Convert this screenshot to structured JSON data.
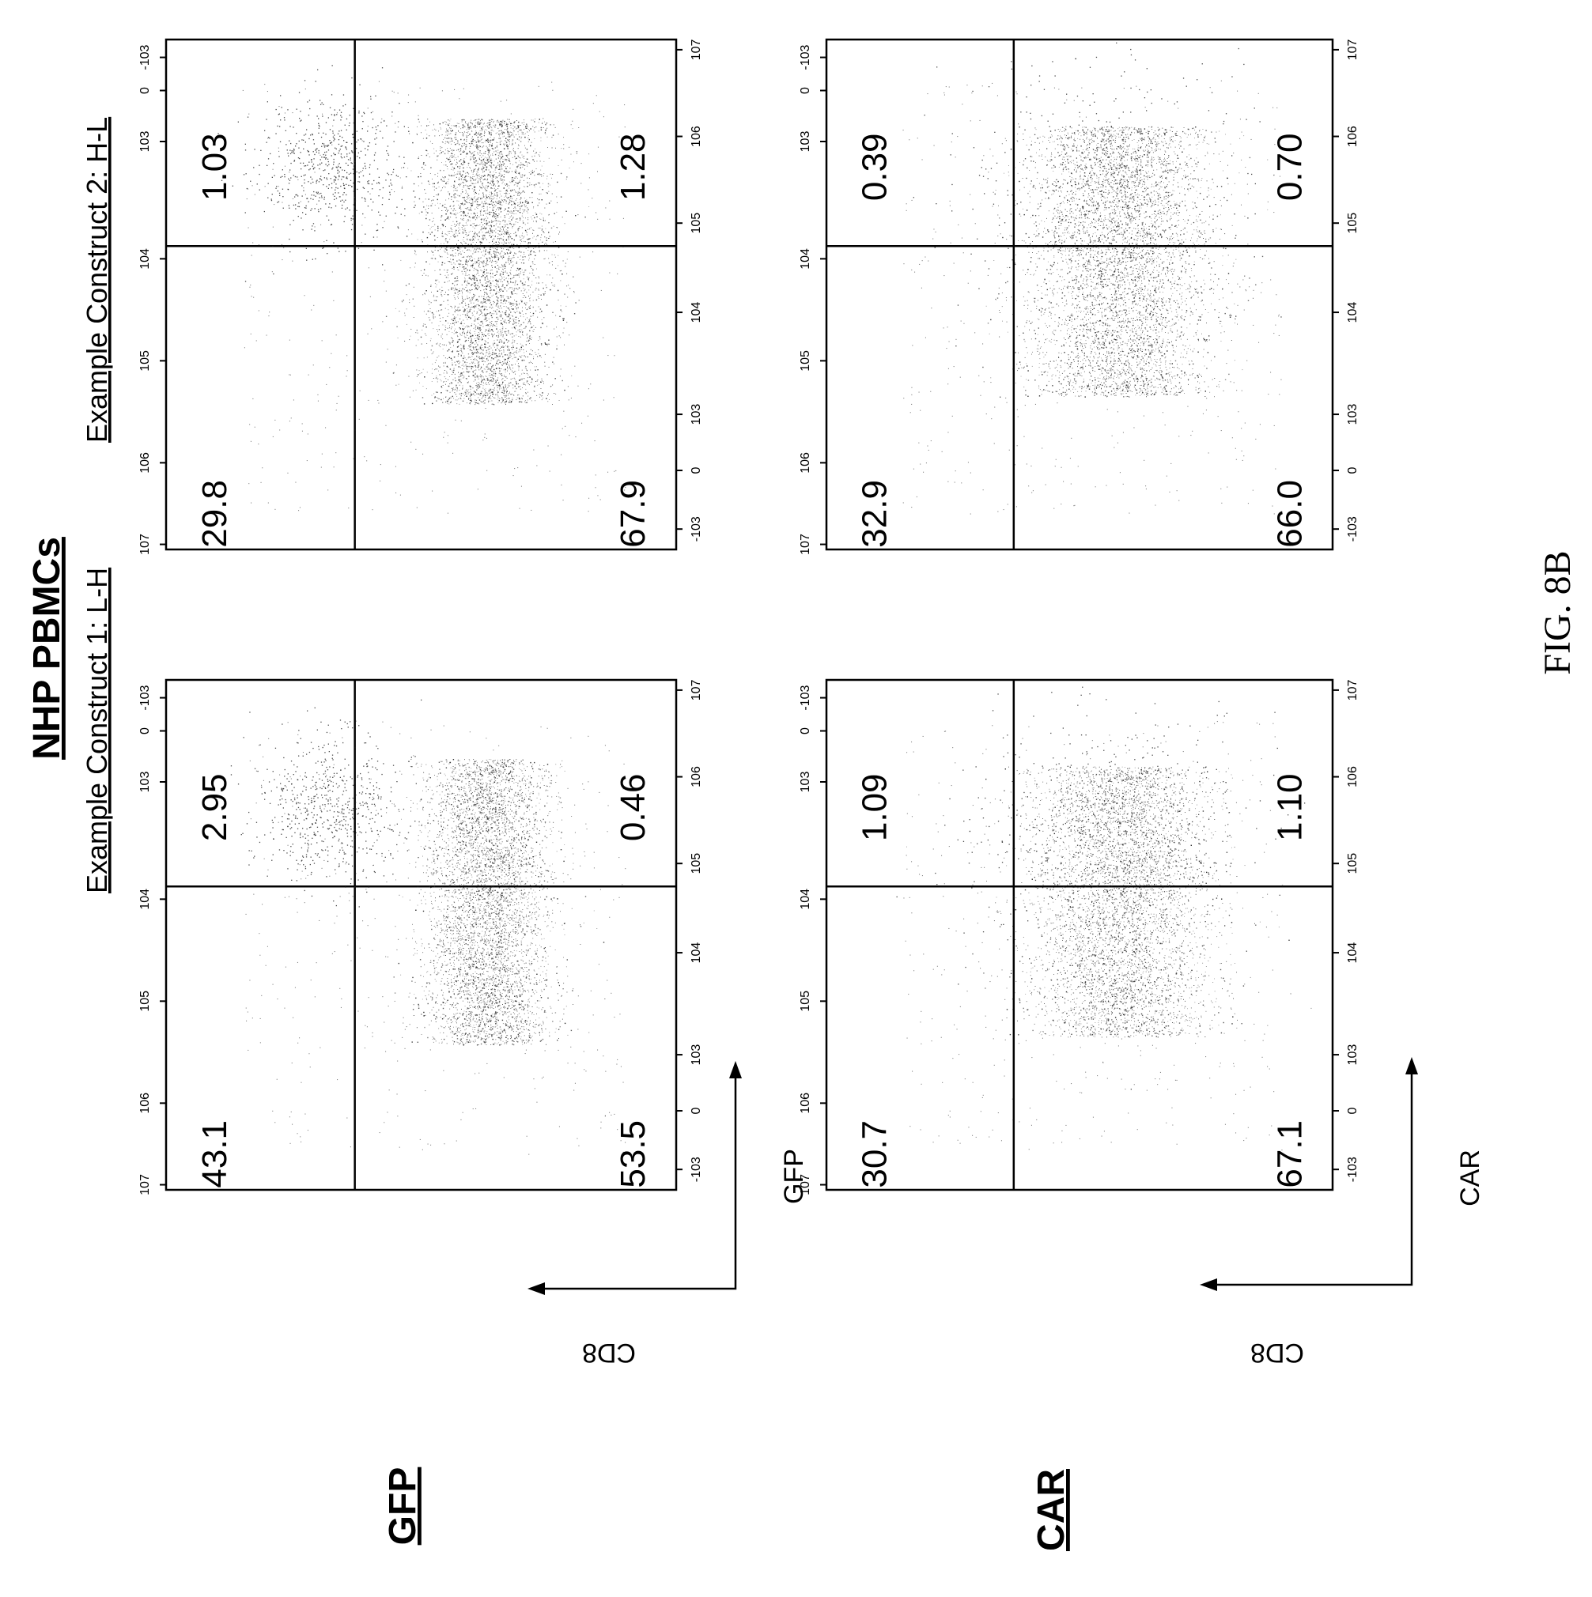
{
  "figure": {
    "title": "NHP PBMCs",
    "caption": "FIG. 8B",
    "row_labels": [
      "GFP",
      "CAR"
    ],
    "column_labels": [
      "Example Construct 1: L-H",
      "Example Construct 2: H-L"
    ],
    "axis_titles": {
      "y": "CD8",
      "x_row_gfp": "GFP",
      "x_row_car": "CAR"
    },
    "tick_labels": [
      "-10^3",
      "0",
      "10^3",
      "10^4",
      "10^5",
      "10^6",
      "10^7"
    ]
  },
  "chart_data": [
    {
      "type": "scatter",
      "title": "Example Construct 1: L-H",
      "row": "GFP",
      "xlabel": "GFP",
      "ylabel": "CD8",
      "quadrant_percentages": {
        "upper_left": 43.1,
        "upper_right": 2.95,
        "lower_left": 53.5,
        "lower_right": 0.46
      },
      "quadrant_labels": {
        "upper_left": "43.1",
        "upper_right": "2.95",
        "lower_left": "53.5",
        "lower_right": "0.46"
      }
    },
    {
      "type": "scatter",
      "title": "Example Construct 2: H-L",
      "row": "GFP",
      "xlabel": "GFP",
      "ylabel": "CD8",
      "quadrant_percentages": {
        "upper_left": 29.8,
        "upper_right": 1.03,
        "lower_left": 67.9,
        "lower_right": 1.28
      },
      "quadrant_labels": {
        "upper_left": "29.8",
        "upper_right": "1.03",
        "lower_left": "67.9",
        "lower_right": "1.28"
      }
    },
    {
      "type": "scatter",
      "title": "",
      "row": "CAR",
      "xlabel": "CAR",
      "ylabel": "CD8",
      "quadrant_percentages": {
        "upper_left": 30.7,
        "upper_right": 1.09,
        "lower_left": 67.1,
        "lower_right": 1.1
      },
      "quadrant_labels": {
        "upper_left": "30.7",
        "upper_right": "1.09",
        "lower_left": "67.1",
        "lower_right": "1.10"
      }
    },
    {
      "type": "scatter",
      "title": "",
      "row": "CAR",
      "xlabel": "CAR",
      "ylabel": "CD8",
      "quadrant_percentages": {
        "upper_left": 32.9,
        "upper_right": 0.39,
        "lower_left": 66.0,
        "lower_right": 0.7
      },
      "quadrant_labels": {
        "upper_left": "32.9",
        "upper_right": "0.39",
        "lower_left": "66.0",
        "lower_right": "0.70"
      }
    }
  ]
}
